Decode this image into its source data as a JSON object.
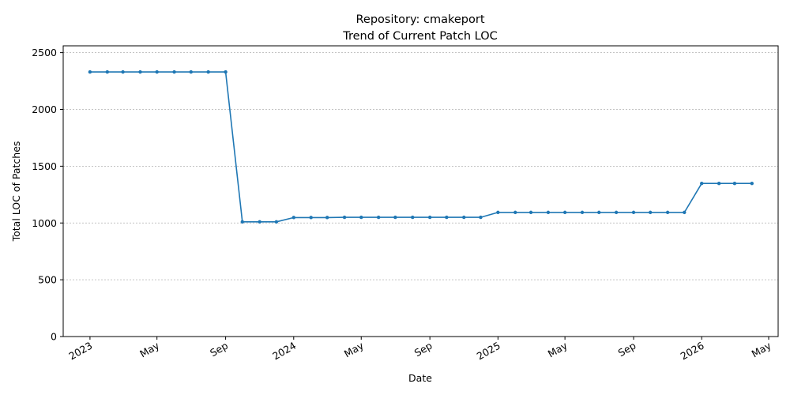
{
  "chart_data": {
    "type": "line",
    "title_line1": "Repository: cmakeport",
    "title_line2": "Trend of Current Patch LOC",
    "xlabel": "Date",
    "ylabel": "Total LOC of Patches",
    "ylim": [
      0,
      2560
    ],
    "xlim": [
      "2022-11-14",
      "2026-05-18"
    ],
    "grid": {
      "y": true,
      "x": false,
      "style": "dashed"
    },
    "line_color": "#1f77b4",
    "y_ticks": [
      0,
      500,
      1000,
      1500,
      2000,
      2500
    ],
    "x_ticks": [
      {
        "date": "2023-01-01",
        "label": "2023"
      },
      {
        "date": "2023-05-01",
        "label": "May"
      },
      {
        "date": "2023-09-01",
        "label": "Sep"
      },
      {
        "date": "2024-01-01",
        "label": "2024"
      },
      {
        "date": "2024-05-01",
        "label": "May"
      },
      {
        "date": "2024-09-01",
        "label": "Sep"
      },
      {
        "date": "2025-01-01",
        "label": "2025"
      },
      {
        "date": "2025-05-01",
        "label": "May"
      },
      {
        "date": "2025-09-01",
        "label": "Sep"
      },
      {
        "date": "2026-01-01",
        "label": "2026"
      },
      {
        "date": "2026-05-01",
        "label": "May"
      }
    ],
    "series": [
      {
        "points": [
          {
            "x": "2023-01-01",
            "y": 2330
          },
          {
            "x": "2023-02-01",
            "y": 2330
          },
          {
            "x": "2023-03-01",
            "y": 2330
          },
          {
            "x": "2023-04-01",
            "y": 2330
          },
          {
            "x": "2023-05-01",
            "y": 2330
          },
          {
            "x": "2023-06-01",
            "y": 2330
          },
          {
            "x": "2023-07-01",
            "y": 2330
          },
          {
            "x": "2023-08-01",
            "y": 2330
          },
          {
            "x": "2023-09-01",
            "y": 2330
          },
          {
            "x": "2023-10-01",
            "y": 1010
          },
          {
            "x": "2023-11-01",
            "y": 1010
          },
          {
            "x": "2023-12-01",
            "y": 1010
          },
          {
            "x": "2024-01-01",
            "y": 1048
          },
          {
            "x": "2024-02-01",
            "y": 1048
          },
          {
            "x": "2024-03-01",
            "y": 1048
          },
          {
            "x": "2024-04-01",
            "y": 1050
          },
          {
            "x": "2024-05-01",
            "y": 1050
          },
          {
            "x": "2024-06-01",
            "y": 1050
          },
          {
            "x": "2024-07-01",
            "y": 1050
          },
          {
            "x": "2024-08-01",
            "y": 1050
          },
          {
            "x": "2024-09-01",
            "y": 1050
          },
          {
            "x": "2024-10-01",
            "y": 1050
          },
          {
            "x": "2024-11-01",
            "y": 1050
          },
          {
            "x": "2024-12-01",
            "y": 1050
          },
          {
            "x": "2025-01-01",
            "y": 1093
          },
          {
            "x": "2025-02-01",
            "y": 1093
          },
          {
            "x": "2025-03-01",
            "y": 1093
          },
          {
            "x": "2025-04-01",
            "y": 1093
          },
          {
            "x": "2025-05-01",
            "y": 1093
          },
          {
            "x": "2025-06-01",
            "y": 1093
          },
          {
            "x": "2025-07-01",
            "y": 1093
          },
          {
            "x": "2025-08-01",
            "y": 1093
          },
          {
            "x": "2025-09-01",
            "y": 1093
          },
          {
            "x": "2025-10-01",
            "y": 1093
          },
          {
            "x": "2025-11-01",
            "y": 1093
          },
          {
            "x": "2025-12-01",
            "y": 1093
          },
          {
            "x": "2026-01-01",
            "y": 1348
          },
          {
            "x": "2026-02-01",
            "y": 1348
          },
          {
            "x": "2026-03-01",
            "y": 1348
          },
          {
            "x": "2026-04-01",
            "y": 1348
          }
        ]
      }
    ]
  }
}
